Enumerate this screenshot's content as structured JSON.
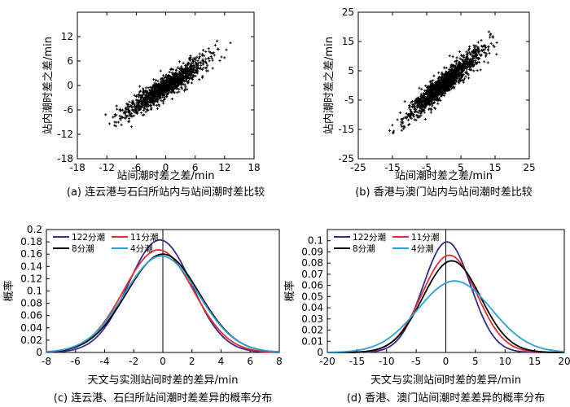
{
  "chart_data": [
    {
      "type": "scatter",
      "panel": "a",
      "caption": "(a) 连云港与石臼所站内与站间潮时差比较",
      "xlabel": "站间潮时差之差/min",
      "ylabel": "站内潮时差之差/min",
      "xlim": [
        -18,
        18
      ],
      "ylim": [
        -18,
        18
      ],
      "xticks": [
        "-18",
        "-12",
        "-6",
        "0",
        "6",
        "12",
        "18"
      ],
      "yticks": [
        "-18",
        "-12",
        "-6",
        "0",
        "6",
        "12"
      ],
      "trend": {
        "slope": 0.78,
        "intercept": -0.3
      },
      "x_range": [
        -15,
        15
      ],
      "cloud_spread": [
        2.5,
        0.6
      ],
      "n_points": 1200,
      "seed": 17
    },
    {
      "type": "scatter",
      "panel": "b",
      "caption": "(b) 香港与澳门站内与站间潮时差比较",
      "xlabel": "站间潮时差之差/min",
      "ylabel": "站内潮时差之差/min",
      "xlim": [
        -25,
        25
      ],
      "ylim": [
        -25,
        25
      ],
      "xticks": [
        "-25",
        "-15",
        "-5",
        "5",
        "15",
        "25"
      ],
      "yticks": [
        "-25",
        "-15",
        "-5",
        "5",
        "15",
        "25"
      ],
      "trend": {
        "slope": 1.0,
        "intercept": 0.5
      },
      "x_range": [
        -20,
        21
      ],
      "cloud_spread": [
        3.8,
        1.0
      ],
      "n_points": 1300,
      "seed": 29
    },
    {
      "type": "line",
      "panel": "c",
      "caption": "(c) 连云港、石臼所站间潮时差差异的概率分布",
      "xlabel": "天文与实测站间时差的差异/min",
      "ylabel": "概率",
      "xlim": [
        -8,
        8
      ],
      "ylim": [
        0,
        0.2
      ],
      "xticks": [
        "-8",
        "-6",
        "-4",
        "-2",
        "0",
        "2",
        "4",
        "6",
        "8"
      ],
      "yticks": [
        "0",
        "0.02",
        "0.04",
        "0.06",
        "0.08",
        "0.1",
        "0.12",
        "0.14",
        "0.16",
        "0.18",
        "0.2"
      ],
      "legend": {
        "position": "top-left",
        "columns": 2
      },
      "series": [
        {
          "name": "122分潮",
          "color": "#3a2a8c",
          "peak": 0.183,
          "mean": -0.2,
          "sd": 2.18
        },
        {
          "name": "11分潮",
          "color": "#e03030",
          "peak": 0.167,
          "mean": -0.3,
          "sd": 2.39
        },
        {
          "name": "8分潮",
          "color": "#000000",
          "peak": 0.16,
          "mean": 0.0,
          "sd": 2.49
        },
        {
          "name": "4分潮",
          "color": "#2aa0d8",
          "peak": 0.157,
          "mean": -0.1,
          "sd": 2.54
        }
      ]
    },
    {
      "type": "line",
      "panel": "d",
      "caption": "(d) 香港、澳门站间潮时差差异的概率分布",
      "xlabel": "天文与实测站间时差的差异/min",
      "ylabel": "概率",
      "xlim": [
        -20,
        20
      ],
      "ylim": [
        0,
        0.11
      ],
      "xticks": [
        "-20",
        "-15",
        "-10",
        "-5",
        "0",
        "5",
        "10",
        "15",
        "20"
      ],
      "yticks": [
        "0",
        "0.01",
        "0.02",
        "0.03",
        "0.04",
        "0.05",
        "0.06",
        "0.07",
        "0.08",
        "0.09",
        "0.1"
      ],
      "legend": {
        "position": "top-left",
        "columns": 2
      },
      "series": [
        {
          "name": "122分潮",
          "color": "#3a2a8c",
          "peak": 0.099,
          "mean": 0.2,
          "sd": 4.0
        },
        {
          "name": "11分潮",
          "color": "#e03030",
          "peak": 0.087,
          "mean": 0.6,
          "sd": 4.6
        },
        {
          "name": "8分潮",
          "color": "#000000",
          "peak": 0.082,
          "mean": 1.0,
          "sd": 4.85
        },
        {
          "name": "4分潮",
          "color": "#2aa0d8",
          "peak": 0.064,
          "mean": 1.5,
          "sd": 6.2
        }
      ]
    }
  ]
}
